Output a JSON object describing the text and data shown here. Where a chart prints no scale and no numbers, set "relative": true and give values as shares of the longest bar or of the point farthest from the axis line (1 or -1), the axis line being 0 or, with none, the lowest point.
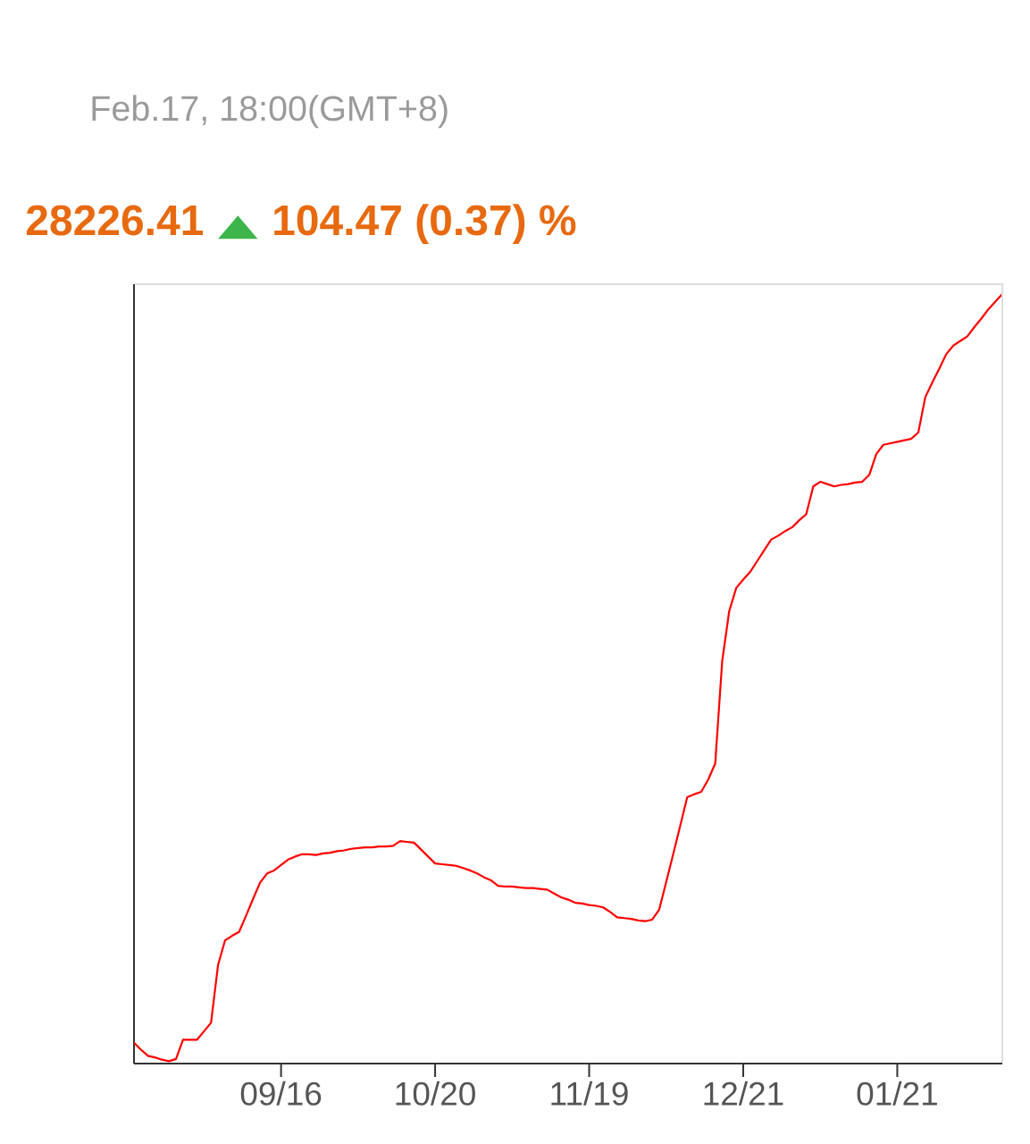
{
  "chart_data": {
    "type": "line",
    "subtitle": "Feb.17, 18:00(GMT+8)",
    "annotations": [
      "28226.41",
      "▲",
      "104.47 (0.37) %"
    ],
    "relative": true,
    "color": "#ff0000",
    "line_style": "solid",
    "categories": [
      null,
      null,
      null,
      null,
      null,
      null,
      null,
      null,
      null,
      null,
      null,
      null,
      null,
      null,
      null,
      null,
      null,
      null,
      null,
      null,
      null,
      "09/16",
      null,
      null,
      null,
      null,
      null,
      null,
      null,
      null,
      null,
      null,
      null,
      null,
      null,
      null,
      null,
      null,
      null,
      null,
      null,
      null,
      null,
      "10/20",
      null,
      null,
      null,
      null,
      null,
      null,
      null,
      null,
      null,
      null,
      null,
      null,
      null,
      null,
      null,
      null,
      null,
      null,
      null,
      null,
      null,
      "11/19",
      null,
      null,
      null,
      null,
      null,
      null,
      null,
      null,
      null,
      null,
      null,
      null,
      null,
      null,
      null,
      null,
      null,
      null,
      null,
      null,
      null,
      "12/21",
      null,
      null,
      null,
      null,
      null,
      null,
      null,
      null,
      null,
      null,
      null,
      null,
      null,
      null,
      null,
      null,
      null,
      null,
      null,
      null,
      null,
      "01/21",
      null,
      null,
      null,
      null,
      null,
      null,
      null,
      null,
      null,
      null,
      null,
      null,
      null,
      null,
      null
    ],
    "values": [
      0.027,
      0.018,
      0.01,
      0.008,
      0.005,
      0.003,
      0.006,
      0.031,
      0.031,
      0.031,
      0.042,
      0.053,
      0.128,
      0.16,
      0.166,
      0.171,
      0.192,
      0.214,
      0.235,
      0.247,
      0.251,
      0.258,
      0.265,
      0.269,
      0.272,
      0.272,
      0.271,
      0.273,
      0.274,
      0.276,
      0.277,
      0.279,
      0.28,
      0.281,
      0.281,
      0.282,
      0.282,
      0.283,
      0.289,
      0.288,
      0.287,
      0.278,
      0.269,
      0.26,
      0.259,
      0.258,
      0.257,
      0.254,
      0.251,
      0.247,
      0.242,
      0.238,
      0.231,
      0.23,
      0.23,
      0.229,
      0.228,
      0.228,
      0.227,
      0.226,
      0.221,
      0.216,
      0.213,
      0.209,
      0.208,
      0.206,
      0.205,
      0.203,
      0.197,
      0.19,
      0.189,
      0.188,
      0.186,
      0.185,
      0.187,
      0.2,
      0.236,
      0.272,
      0.309,
      0.346,
      0.35,
      0.353,
      0.369,
      0.39,
      0.523,
      0.588,
      0.618,
      0.629,
      0.639,
      0.653,
      0.667,
      0.681,
      0.686,
      0.692,
      0.697,
      0.706,
      0.714,
      0.75,
      0.756,
      0.753,
      0.75,
      0.752,
      0.753,
      0.755,
      0.756,
      0.765,
      0.792,
      0.804,
      0.806,
      0.808,
      0.81,
      0.812,
      0.82,
      0.866,
      0.885,
      0.903,
      0.922,
      0.933,
      0.939,
      0.945,
      0.957,
      0.968,
      0.98,
      0.99,
      1.0
    ]
  }
}
